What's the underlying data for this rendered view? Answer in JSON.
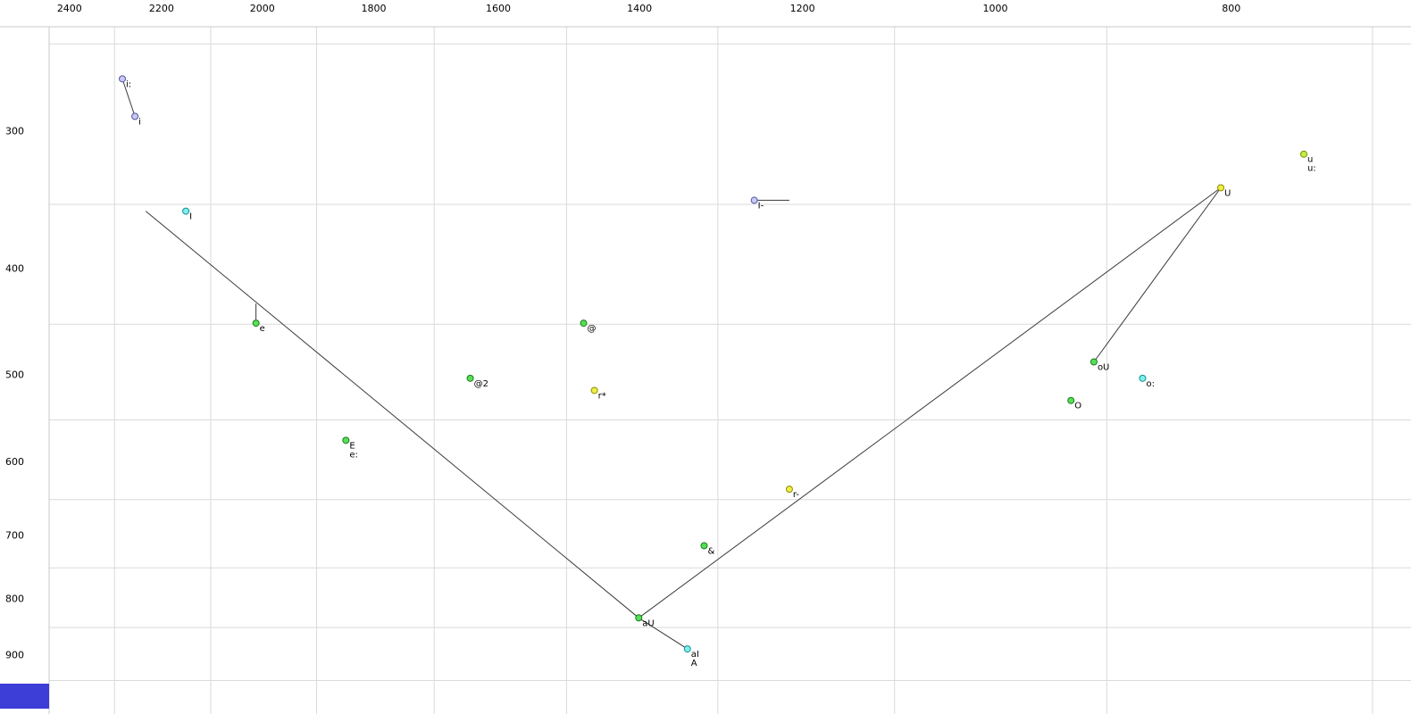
{
  "chart_data": {
    "type": "scatter",
    "title": "",
    "xlabel": "",
    "ylabel": "",
    "description": "Vowel formant plot: F2 on reversed log horizontal axis (top ruler), F1 on log vertical axis (left ruler), phoneme symbols as colored dots with diphthong/envelope trajectory lines",
    "x_axis": {
      "scale": "log",
      "reversed": true,
      "tick_values": [
        2400,
        2200,
        2000,
        1800,
        1600,
        1400,
        1200,
        1000,
        800
      ],
      "tick_labels": [
        "2400",
        "2200",
        "2000",
        "1800",
        "1600",
        "1400",
        "1200",
        "1000",
        "800"
      ],
      "gridline_values": [
        2300,
        2100,
        1900,
        1700,
        1500,
        1300,
        1100,
        900,
        700
      ],
      "value_at_left_edge": 2563,
      "value_at_right_edge": 675
    },
    "y_axis": {
      "scale": "log",
      "reversed": false,
      "tick_values": [
        300,
        400,
        500,
        600,
        700,
        800,
        900,
        1000
      ],
      "tick_labels": [
        "300",
        "400",
        "500",
        "600",
        "700",
        "800",
        "900",
        "1000"
      ],
      "gridline_values": [
        250,
        350,
        450,
        550,
        650,
        750,
        850,
        950
      ],
      "value_at_top_edge": 228,
      "value_at_bottom_edge": 1019
    },
    "points": [
      {
        "labels": [
          "i:"
        ],
        "f2": 2283,
        "f1": 269,
        "color": "lavender"
      },
      {
        "labels": [
          "i"
        ],
        "f2": 2256,
        "f1": 291,
        "color": "lavender"
      },
      {
        "labels": [
          "I"
        ],
        "f2": 2150,
        "f1": 355,
        "color": "cyan"
      },
      {
        "labels": [
          "e"
        ],
        "f2": 2012,
        "f1": 449,
        "color": "green"
      },
      {
        "labels": [
          "E",
          "e:"
        ],
        "f2": 1848,
        "f1": 574,
        "color": "green"
      },
      {
        "labels": [
          "@2"
        ],
        "f2": 1643,
        "f1": 504,
        "color": "green"
      },
      {
        "labels": [
          "@"
        ],
        "f2": 1476,
        "f1": 449,
        "color": "green"
      },
      {
        "labels": [
          "r*"
        ],
        "f2": 1461,
        "f1": 517,
        "color": "yellow"
      },
      {
        "labels": [
          "aU"
        ],
        "f2": 1401,
        "f1": 833,
        "color": "green"
      },
      {
        "labels": [
          "aI",
          "A"
        ],
        "f2": 1338,
        "f1": 889,
        "color": "cyan"
      },
      {
        "labels": [
          "&"
        ],
        "f2": 1317,
        "f1": 716,
        "color": "green"
      },
      {
        "labels": [
          "I-"
        ],
        "f2": 1256,
        "f1": 347,
        "color": "lavender"
      },
      {
        "labels": [
          "r-"
        ],
        "f2": 1215,
        "f1": 636,
        "color": "yellow"
      },
      {
        "labels": [
          "O"
        ],
        "f2": 931,
        "f1": 528,
        "color": "green"
      },
      {
        "labels": [
          "oU"
        ],
        "f2": 911,
        "f1": 487,
        "color": "green"
      },
      {
        "labels": [
          "o:"
        ],
        "f2": 870,
        "f1": 504,
        "color": "cyan"
      },
      {
        "labels": [
          "U"
        ],
        "f2": 808,
        "f1": 338,
        "color": "yellow"
      },
      {
        "labels": [
          "u",
          "u:"
        ],
        "f2": 747,
        "f1": 315,
        "color": "chartreuse"
      }
    ],
    "segments": [
      {
        "name": "i-long-to-i",
        "from": [
          2283,
          269
        ],
        "to": [
          2256,
          291
        ]
      },
      {
        "name": "front-diagonal",
        "from": [
          2233,
          355
        ],
        "to": [
          1401,
          833
        ]
      },
      {
        "name": "back-diagonal",
        "from": [
          1401,
          833
        ],
        "to": [
          808,
          338
        ]
      },
      {
        "name": "u-to-ou",
        "from": [
          808,
          338
        ],
        "to": [
          911,
          487
        ]
      },
      {
        "name": "au-to-ai",
        "from": [
          1401,
          833
        ],
        "to": [
          1338,
          889
        ]
      },
      {
        "name": "i-bar-tick",
        "from": [
          1256,
          347
        ],
        "to": [
          1215,
          347
        ]
      },
      {
        "name": "e-stem",
        "from": [
          2012,
          431
        ],
        "to": [
          2012,
          446
        ]
      }
    ],
    "colors": {
      "lavender": {
        "fill": "#c9c9f6",
        "stroke": "#5555a0"
      },
      "cyan": {
        "fill": "#7fefef",
        "stroke": "#0f9090"
      },
      "green": {
        "fill": "#55e055",
        "stroke": "#1f7a1f"
      },
      "yellow": {
        "fill": "#f0ec48",
        "stroke": "#8f8f00"
      },
      "chartreuse": {
        "fill": "#c6ee3e",
        "stroke": "#6f9000"
      }
    },
    "style": {
      "background": "#ffffff",
      "grid_color": "#dadada",
      "margin_line_color": "#c9c9c9",
      "axis_text_color": "#000000",
      "point_label_color": "#000000",
      "segment_color": "#3a3a3a",
      "corner_swatch_color": "#3d3dd8"
    }
  }
}
